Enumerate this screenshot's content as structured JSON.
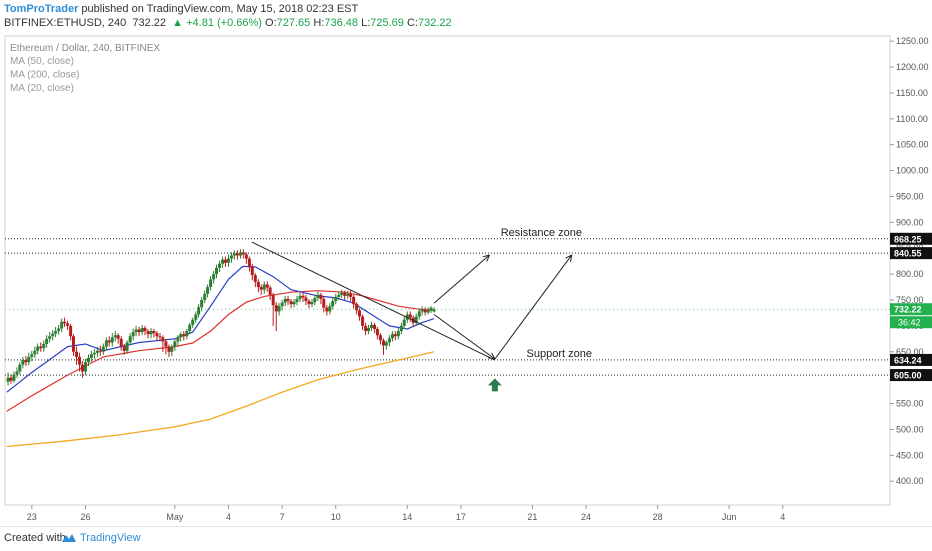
{
  "header": {
    "author": "TomProTrader",
    "published_text": " published on TradingView.com, May 15, 2018 02:23 EST",
    "symbol": "BITFINEX:ETHUSD, 240",
    "last": "732.22",
    "change": "▲ +4.81 (+0.66%)",
    "o_label": "O:",
    "o": "727.65",
    "h_label": "H:",
    "h": "736.48",
    "l_label": "L:",
    "l": "725.69",
    "c_label": "C:",
    "c": "732.22"
  },
  "footer": {
    "created_with": "Created with",
    "brand": "TradingView"
  },
  "colors": {
    "up_candle": "#2e7d32",
    "down_candle": "#b71c1c",
    "ma20": "#2b3fc9",
    "ma50": "#e0312f",
    "ma200": "#f5a623",
    "price_badge": "#22b14c",
    "arrow": "#2e7d50"
  },
  "chart_data": {
    "type": "candlestick",
    "title": "Ethereum / Dollar, 240, BITFINEX",
    "indicators": [
      "MA (50, close)",
      "MA (200, close)",
      "MA (20, close)"
    ],
    "y_ticks": [
      400,
      450,
      500,
      550,
      600,
      650,
      700,
      750,
      800,
      850,
      900,
      950,
      1000,
      1050,
      1100,
      1150,
      1200,
      1250
    ],
    "y_tick_labels": [
      "400.00",
      "450.00",
      "500.00",
      "550.00",
      "600.00",
      "650.00",
      "700.00",
      "750.00",
      "800.00",
      "850.00",
      "900.00",
      "950.00",
      "1000.00",
      "1050.00",
      "1100.00",
      "1150.00",
      "1200.00",
      "1250.00"
    ],
    "ylim": [
      354,
      1260
    ],
    "x_ticks": [
      "23",
      "26",
      "May",
      "4",
      "7",
      "10",
      "14",
      "17",
      "21",
      "24",
      "28",
      "Jun",
      "4"
    ],
    "x_tick_days": [
      -8,
      -5,
      0,
      3,
      6,
      9,
      13,
      16,
      20,
      23,
      27,
      31,
      34
    ],
    "xlim": [
      -9.5,
      40
    ],
    "levels": [
      {
        "value": 868.25,
        "label": "868.25"
      },
      {
        "value": 840.55,
        "label": "840.55"
      },
      {
        "value": 634.24,
        "label": "634.24"
      },
      {
        "value": 605.0,
        "label": "605.00"
      }
    ],
    "current_price": {
      "value": 732.22,
      "label": "732.22",
      "countdown": "36:42"
    },
    "zones": [
      {
        "name": "Resistance zone",
        "from": 840.55,
        "to": 868.25
      },
      {
        "name": "Support zone",
        "from": 605.0,
        "to": 634.24
      }
    ],
    "trendline": [
      {
        "day": 4.3,
        "price": 862
      },
      {
        "day": 17.9,
        "price": 634
      }
    ],
    "projection_arrows": [
      [
        {
          "day": 14.5,
          "price": 744
        },
        {
          "day": 17.6,
          "price": 837
        }
      ],
      [
        {
          "day": 14.5,
          "price": 722
        },
        {
          "day": 17.9,
          "price": 636
        }
      ],
      [
        {
          "day": 17.9,
          "price": 636
        },
        {
          "day": 22.2,
          "price": 837
        }
      ]
    ],
    "long_signal": {
      "day": 17.9,
      "price": 585
    },
    "candles_compact": [
      [
        -9.33,
        592,
        600,
        610,
        585
      ],
      [
        -9.17,
        600,
        594,
        606,
        588
      ],
      [
        -9.0,
        594,
        606,
        612,
        590
      ],
      [
        -8.83,
        606,
        612,
        620,
        600
      ],
      [
        -8.67,
        612,
        625,
        630,
        606
      ],
      [
        -8.5,
        625,
        634,
        640,
        618
      ],
      [
        -8.33,
        634,
        630,
        642,
        622
      ],
      [
        -8.17,
        630,
        640,
        648,
        624
      ],
      [
        -8.0,
        640,
        645,
        652,
        632
      ],
      [
        -7.83,
        645,
        652,
        660,
        638
      ],
      [
        -7.67,
        652,
        660,
        666,
        645
      ],
      [
        -7.5,
        660,
        657,
        668,
        650
      ],
      [
        -7.33,
        657,
        665,
        672,
        650
      ],
      [
        -7.17,
        665,
        675,
        682,
        658
      ],
      [
        -7.0,
        675,
        680,
        688,
        668
      ],
      [
        -6.83,
        680,
        685,
        692,
        672
      ],
      [
        -6.67,
        685,
        690,
        698,
        678
      ],
      [
        -6.5,
        690,
        695,
        702,
        683
      ],
      [
        -6.33,
        695,
        708,
        714,
        688
      ],
      [
        -6.17,
        708,
        705,
        716,
        698
      ],
      [
        -6.0,
        705,
        700,
        710,
        692
      ],
      [
        -5.83,
        700,
        680,
        704,
        672
      ],
      [
        -5.67,
        680,
        650,
        684,
        642
      ],
      [
        -5.5,
        650,
        640,
        660,
        625
      ],
      [
        -5.33,
        640,
        625,
        648,
        612
      ],
      [
        -5.17,
        625,
        612,
        632,
        600
      ],
      [
        -5.0,
        612,
        630,
        636,
        605
      ],
      [
        -4.83,
        630,
        638,
        645,
        622
      ],
      [
        -4.67,
        638,
        645,
        652,
        630
      ],
      [
        -4.5,
        645,
        648,
        655,
        636
      ],
      [
        -4.33,
        648,
        652,
        660,
        640
      ],
      [
        -4.17,
        652,
        650,
        662,
        642
      ],
      [
        -4.0,
        650,
        660,
        666,
        644
      ],
      [
        -3.83,
        660,
        672,
        678,
        652
      ],
      [
        -3.67,
        672,
        668,
        680,
        660
      ],
      [
        -3.5,
        668,
        678,
        686,
        660
      ],
      [
        -3.33,
        678,
        682,
        690,
        670
      ],
      [
        -3.17,
        682,
        675,
        686,
        666
      ],
      [
        -3.0,
        675,
        660,
        680,
        652
      ],
      [
        -2.83,
        660,
        652,
        665,
        644
      ],
      [
        -2.67,
        652,
        668,
        672,
        646
      ],
      [
        -2.5,
        668,
        680,
        686,
        662
      ],
      [
        -2.33,
        680,
        688,
        695,
        672
      ],
      [
        -2.17,
        688,
        693,
        700,
        680
      ],
      [
        -2.0,
        693,
        688,
        698,
        680
      ],
      [
        -1.83,
        688,
        696,
        702,
        682
      ],
      [
        -1.67,
        696,
        690,
        700,
        682
      ],
      [
        -1.5,
        690,
        684,
        694,
        676
      ],
      [
        -1.33,
        684,
        690,
        696,
        676
      ],
      [
        -1.17,
        690,
        686,
        694,
        678
      ],
      [
        -1.0,
        686,
        680,
        690,
        672
      ],
      [
        -0.83,
        680,
        678,
        686,
        670
      ],
      [
        -0.67,
        678,
        670,
        682,
        650
      ],
      [
        -0.5,
        670,
        660,
        674,
        645
      ],
      [
        -0.33,
        660,
        650,
        664,
        640
      ],
      [
        -0.17,
        650,
        660,
        664,
        642
      ],
      [
        0.0,
        660,
        670,
        674,
        652
      ],
      [
        0.17,
        670,
        678,
        682,
        662
      ],
      [
        0.33,
        678,
        684,
        688,
        670
      ],
      [
        0.5,
        684,
        680,
        690,
        672
      ],
      [
        0.67,
        680,
        690,
        694,
        674
      ],
      [
        0.83,
        690,
        702,
        706,
        684
      ],
      [
        1.0,
        702,
        712,
        716,
        696
      ],
      [
        1.17,
        712,
        722,
        728,
        706
      ],
      [
        1.33,
        722,
        736,
        742,
        716
      ],
      [
        1.5,
        736,
        750,
        756,
        728
      ],
      [
        1.67,
        750,
        762,
        768,
        744
      ],
      [
        1.83,
        762,
        775,
        780,
        755
      ],
      [
        2.0,
        775,
        790,
        796,
        768
      ],
      [
        2.17,
        790,
        800,
        806,
        782
      ],
      [
        2.33,
        800,
        812,
        818,
        792
      ],
      [
        2.5,
        812,
        820,
        826,
        804
      ],
      [
        2.67,
        820,
        828,
        834,
        812
      ],
      [
        2.83,
        828,
        822,
        834,
        814
      ],
      [
        3.0,
        822,
        830,
        838,
        814
      ],
      [
        3.17,
        830,
        836,
        842,
        822
      ],
      [
        3.33,
        836,
        840,
        846,
        828
      ],
      [
        3.5,
        840,
        836,
        846,
        828
      ],
      [
        3.67,
        836,
        842,
        848,
        830
      ],
      [
        3.83,
        842,
        838,
        848,
        830
      ],
      [
        4.0,
        838,
        830,
        842,
        820
      ],
      [
        4.17,
        830,
        815,
        834,
        805
      ],
      [
        4.33,
        815,
        798,
        820,
        788
      ],
      [
        4.5,
        798,
        785,
        802,
        775
      ],
      [
        4.67,
        785,
        775,
        790,
        765
      ],
      [
        4.83,
        775,
        770,
        780,
        760
      ],
      [
        5.0,
        770,
        780,
        786,
        762
      ],
      [
        5.17,
        780,
        774,
        786,
        766
      ],
      [
        5.33,
        774,
        760,
        778,
        750
      ],
      [
        5.5,
        760,
        740,
        764,
        700
      ],
      [
        5.67,
        740,
        728,
        746,
        690
      ],
      [
        5.83,
        728,
        738,
        744,
        720
      ],
      [
        6.0,
        738,
        745,
        750,
        730
      ],
      [
        6.17,
        745,
        752,
        758,
        738
      ],
      [
        6.33,
        752,
        748,
        758,
        740
      ],
      [
        6.5,
        748,
        742,
        752,
        734
      ],
      [
        6.67,
        742,
        746,
        752,
        736
      ],
      [
        6.83,
        746,
        752,
        758,
        740
      ],
      [
        7.0,
        752,
        758,
        764,
        746
      ],
      [
        7.17,
        758,
        755,
        764,
        746
      ],
      [
        7.33,
        755,
        748,
        760,
        740
      ],
      [
        7.5,
        748,
        742,
        752,
        734
      ],
      [
        7.67,
        742,
        746,
        752,
        736
      ],
      [
        7.83,
        746,
        754,
        760,
        740
      ],
      [
        8.0,
        754,
        760,
        766,
        748
      ],
      [
        8.17,
        760,
        752,
        764,
        742
      ],
      [
        8.33,
        752,
        735,
        756,
        726
      ],
      [
        8.5,
        735,
        728,
        740,
        720
      ],
      [
        8.67,
        728,
        738,
        744,
        722
      ],
      [
        8.83,
        738,
        748,
        754,
        732
      ],
      [
        9.0,
        748,
        756,
        762,
        742
      ],
      [
        9.17,
        756,
        760,
        766,
        750
      ],
      [
        9.33,
        760,
        764,
        770,
        754
      ],
      [
        9.5,
        764,
        758,
        768,
        750
      ],
      [
        9.67,
        758,
        762,
        768,
        752
      ],
      [
        9.83,
        762,
        756,
        768,
        748
      ],
      [
        10.0,
        756,
        742,
        760,
        734
      ],
      [
        10.17,
        742,
        730,
        746,
        722
      ],
      [
        10.33,
        730,
        718,
        734,
        710
      ],
      [
        10.5,
        718,
        700,
        722,
        692
      ],
      [
        10.67,
        700,
        690,
        706,
        682
      ],
      [
        10.83,
        690,
        696,
        702,
        684
      ],
      [
        11.0,
        696,
        702,
        708,
        690
      ],
      [
        11.17,
        702,
        694,
        706,
        686
      ],
      [
        11.33,
        694,
        682,
        698,
        674
      ],
      [
        11.5,
        682,
        672,
        686,
        664
      ],
      [
        11.67,
        672,
        662,
        676,
        644
      ],
      [
        11.83,
        662,
        668,
        672,
        654
      ],
      [
        12.0,
        668,
        676,
        682,
        660
      ],
      [
        12.17,
        676,
        684,
        690,
        670
      ],
      [
        12.33,
        684,
        680,
        690,
        672
      ],
      [
        12.5,
        680,
        690,
        696,
        674
      ],
      [
        12.67,
        690,
        700,
        706,
        684
      ],
      [
        12.83,
        700,
        712,
        718,
        694
      ],
      [
        13.0,
        712,
        722,
        728,
        706
      ],
      [
        13.17,
        722,
        716,
        728,
        708
      ],
      [
        13.33,
        716,
        706,
        720,
        698
      ],
      [
        13.5,
        706,
        718,
        724,
        700
      ],
      [
        13.67,
        718,
        728,
        734,
        712
      ],
      [
        13.83,
        728,
        732,
        738,
        720
      ],
      [
        14.0,
        732,
        726,
        736,
        720
      ],
      [
        14.17,
        726,
        730,
        736,
        722
      ],
      [
        14.33,
        730,
        735,
        738,
        725
      ],
      [
        14.5,
        728,
        732,
        736,
        726
      ]
    ],
    "ma20_points": [
      [
        -9.4,
        572
      ],
      [
        -8,
        610
      ],
      [
        -6,
        660
      ],
      [
        -5,
        665
      ],
      [
        -4,
        652
      ],
      [
        -2,
        668
      ],
      [
        0,
        675
      ],
      [
        1,
        688
      ],
      [
        2,
        738
      ],
      [
        3,
        790
      ],
      [
        3.8,
        815
      ],
      [
        4.5,
        814
      ],
      [
        5.5,
        795
      ],
      [
        6.5,
        770
      ],
      [
        8,
        758
      ],
      [
        9,
        754
      ],
      [
        10,
        744
      ],
      [
        11,
        722
      ],
      [
        12,
        700
      ],
      [
        13,
        694
      ],
      [
        13.8,
        706
      ],
      [
        14.5,
        714
      ]
    ],
    "ma50_points": [
      [
        -9.4,
        535
      ],
      [
        -8,
        565
      ],
      [
        -6,
        605
      ],
      [
        -4,
        640
      ],
      [
        -2,
        652
      ],
      [
        0,
        660
      ],
      [
        1,
        667
      ],
      [
        2,
        690
      ],
      [
        3,
        722
      ],
      [
        4,
        746
      ],
      [
        5,
        757
      ],
      [
        6.5,
        765
      ],
      [
        8,
        768
      ],
      [
        9.5,
        765
      ],
      [
        10.5,
        758
      ],
      [
        11.5,
        748
      ],
      [
        12.5,
        738
      ],
      [
        13.5,
        733
      ],
      [
        14.5,
        730
      ]
    ],
    "ma200_points": [
      [
        -9.4,
        467
      ],
      [
        -6,
        478
      ],
      [
        -3,
        490
      ],
      [
        0,
        505
      ],
      [
        2,
        520
      ],
      [
        4,
        545
      ],
      [
        6,
        572
      ],
      [
        8,
        596
      ],
      [
        10,
        614
      ],
      [
        12,
        630
      ],
      [
        14.5,
        650
      ]
    ]
  }
}
